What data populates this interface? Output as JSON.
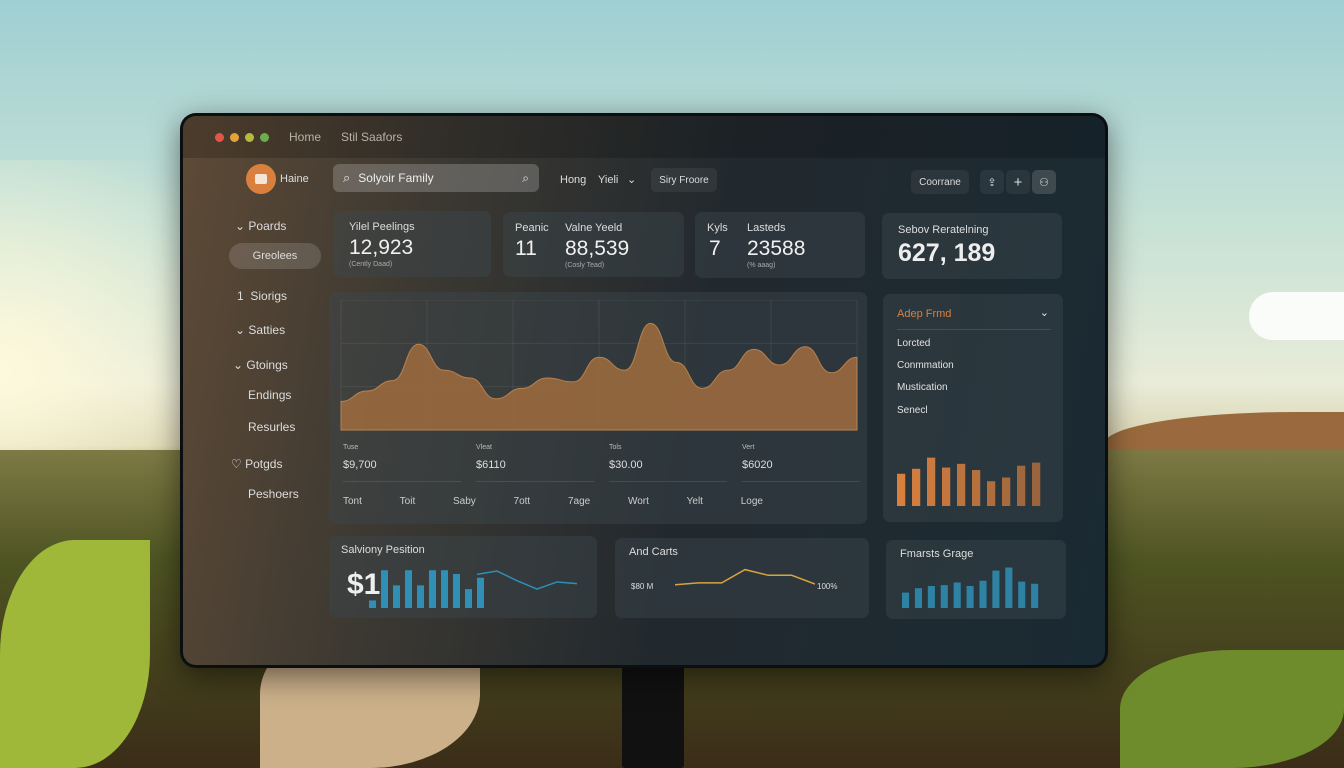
{
  "titlebar": {
    "links": [
      "Home",
      "Stil Saafors"
    ]
  },
  "topbar": {
    "brand": "Haine",
    "search_value": "Solyoir Family",
    "nav_home": "Hong",
    "nav_yield": "Yieli",
    "nav_button": "Siry Froore",
    "right_button": "Coorrane"
  },
  "sidebar": {
    "items": [
      {
        "label": "Poards",
        "icon": "chevron-down-icon"
      },
      {
        "label": "Greolees",
        "active": true
      },
      {
        "label": "Siorigs",
        "icon": "number-1"
      },
      {
        "label": "Satties",
        "icon": "chevron-down-icon"
      },
      {
        "label": "Gtoings",
        "icon": "chevron-down-icon"
      },
      {
        "label": "Endings"
      },
      {
        "label": "Resurles"
      },
      {
        "label": "Potgds",
        "icon": "heart-icon"
      },
      {
        "label": "Peshoers"
      }
    ]
  },
  "stats": [
    {
      "label": "Yilel Peelings",
      "value": "12,923",
      "sub": "(Cently Daad)"
    },
    {
      "label": "Peanic",
      "value": "11",
      "label2": "Valne Yeeld",
      "value2": "88,539",
      "sub": "(Cosly Tead)"
    },
    {
      "label": "Kyls",
      "value": "7",
      "label2": "Lasteds",
      "value2": "23588",
      "sub": "(% aaag)"
    },
    {
      "label": "Sebov Reratelning",
      "value": "627, 189"
    }
  ],
  "main_chart": {
    "summary": [
      {
        "label": "Tuse",
        "value": "$9,700"
      },
      {
        "label": "Vleat",
        "value": "$6110"
      },
      {
        "label": "Tols",
        "value": "$30.00"
      },
      {
        "label": "Vert",
        "value": "$6020"
      }
    ],
    "footer": [
      "Tont",
      "Toit",
      "Saby",
      "7ott",
      "7age",
      "Wort",
      "Yelt",
      "Loge"
    ]
  },
  "dropdown": {
    "title": "Adep Frmd",
    "items": [
      "Lorcted",
      "Conmmation",
      "Mustication",
      "Senecl"
    ]
  },
  "salary": {
    "title": "Salviony Pesition",
    "big": "$1"
  },
  "carts": {
    "title": "And Carts",
    "left": "$80 M",
    "right": "100%"
  },
  "forecast": {
    "title": "Fmarsts Grage"
  },
  "colors": {
    "accent_orange": "#d9803f",
    "accent_blue": "#2f8fb5",
    "area_fill": "#9a6a3f"
  },
  "chart_data": [
    {
      "type": "area",
      "values": [
        22,
        30,
        38,
        66,
        46,
        40,
        24,
        32,
        40,
        37,
        56,
        46,
        82,
        52,
        32,
        46,
        62,
        50,
        64,
        44,
        56
      ],
      "grid": true
    },
    {
      "type": "bar",
      "values": [
        52,
        60,
        78,
        62,
        68,
        58,
        40,
        46,
        65,
        70
      ],
      "color": "#d9803f"
    },
    {
      "type": "bar",
      "values": [
        35,
        45,
        50,
        52,
        58,
        50,
        62,
        85,
        92,
        60,
        55
      ],
      "color": "#2f8fb5"
    },
    {
      "type": "bar",
      "values": [
        20,
        100,
        60,
        100,
        60,
        100,
        100,
        90,
        50,
        80
      ],
      "line": [
        80,
        88,
        65,
        45,
        62,
        58
      ],
      "color": "#2f8fb5"
    },
    {
      "type": "line",
      "values": [
        40,
        45,
        45,
        80,
        65,
        65,
        42
      ],
      "color": "#d9a33f"
    }
  ]
}
